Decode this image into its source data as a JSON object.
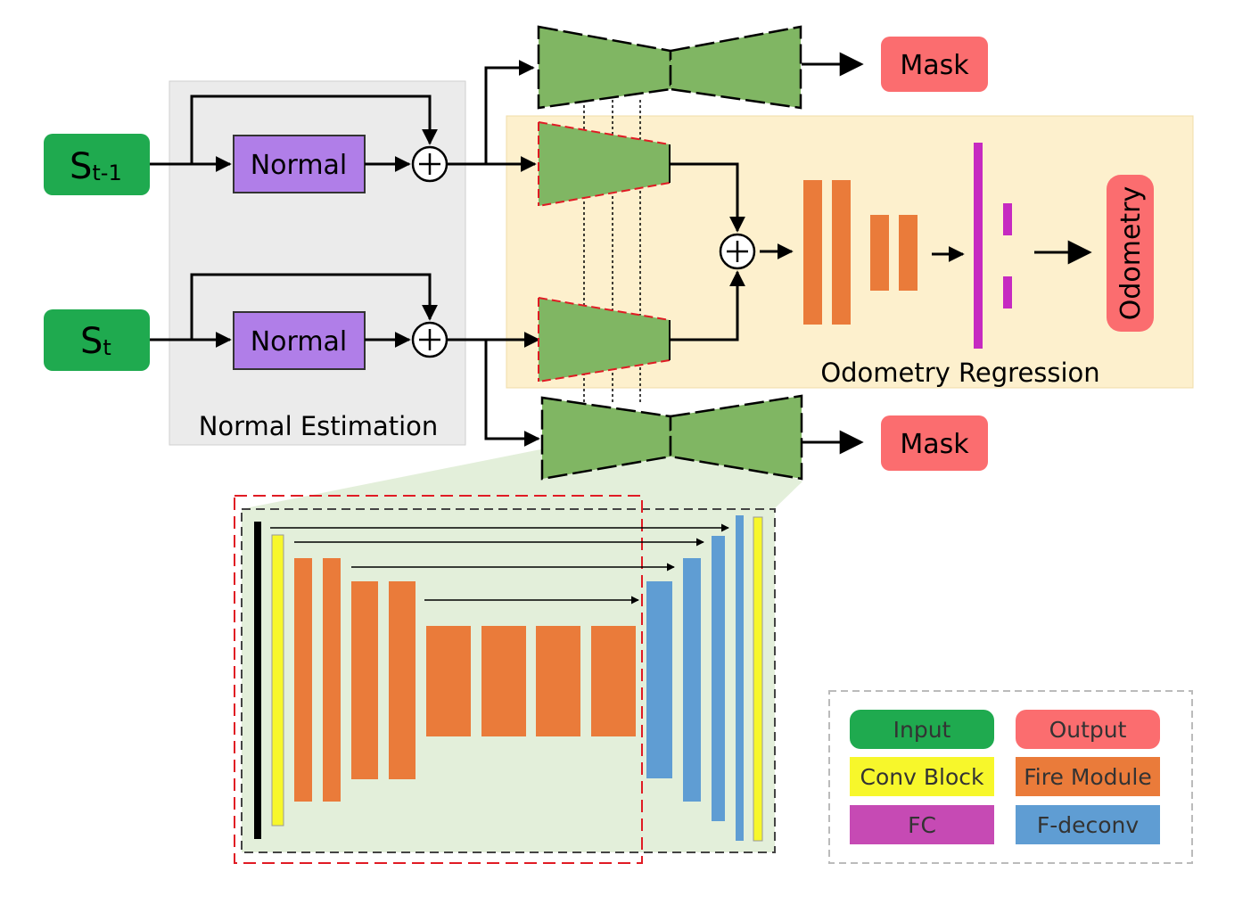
{
  "inputs": {
    "prev": {
      "main": "S",
      "sub": "t-1"
    },
    "curr": {
      "main": "S",
      "sub": "t"
    }
  },
  "normal_block_label": "Normal",
  "normal_estimation_label": "Normal Estimation",
  "odometry_regression_label": "Odometry Regression",
  "mask_label": "Mask",
  "odometry_label": "Odometry",
  "legend": [
    {
      "label": "Input",
      "color": "#1faa4f"
    },
    {
      "label": "Output",
      "color": "#fb6d6f"
    },
    {
      "label": "Conv Block",
      "color": "#f7f72b"
    },
    {
      "label": "Fire Module",
      "color": "#ea7b3a"
    },
    {
      "label": "FC",
      "color": "#c64ab4"
    },
    {
      "label": "F-deconv",
      "color": "#5f9dd3"
    }
  ],
  "colors": {
    "input": "#1faa4f",
    "output": "#fb6d6f",
    "normal": "#b07ee8",
    "encoder": "#80b663",
    "fire": "#ea7b3a",
    "fc": "#c62ac1",
    "deconv": "#5f9dd3",
    "conv": "#f7f72b",
    "odometry_bg": "#fdf0cd",
    "normal_bg": "#ebebeb",
    "detail_bg": "#e3efda"
  }
}
